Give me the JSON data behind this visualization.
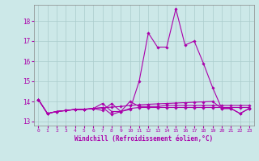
{
  "background_color": "#cce8e8",
  "grid_color": "#aacccc",
  "line_color": "#aa00aa",
  "xlim": [
    -0.5,
    23.5
  ],
  "ylim": [
    12.8,
    18.8
  ],
  "yticks": [
    13,
    14,
    15,
    16,
    17,
    18
  ],
  "xticks": [
    0,
    1,
    2,
    3,
    4,
    5,
    6,
    7,
    8,
    9,
    10,
    11,
    12,
    13,
    14,
    15,
    16,
    17,
    18,
    19,
    20,
    21,
    22,
    23
  ],
  "xlabel": "Windchill (Refroidissement éolien,°C)",
  "series_main": [
    14.1,
    13.4,
    13.5,
    13.55,
    13.6,
    13.6,
    13.65,
    13.55,
    13.9,
    13.5,
    13.6,
    15.0,
    17.4,
    16.7,
    16.7,
    18.6,
    16.8,
    17.0,
    15.9,
    14.7,
    13.65,
    13.65,
    13.4,
    13.65
  ],
  "series_flat": [
    14.1,
    13.4,
    13.5,
    13.55,
    13.6,
    13.62,
    13.65,
    13.68,
    13.72,
    13.75,
    13.8,
    13.83,
    13.86,
    13.88,
    13.9,
    13.92,
    13.94,
    13.96,
    13.98,
    14.0,
    13.65,
    13.65,
    13.4,
    13.65
  ],
  "series_mid1": [
    14.1,
    13.4,
    13.5,
    13.55,
    13.6,
    13.6,
    13.65,
    13.9,
    13.5,
    13.5,
    14.0,
    13.75,
    13.75,
    13.75,
    13.8,
    13.8,
    13.8,
    13.8,
    13.8,
    13.8,
    13.8,
    13.8,
    13.8,
    13.8
  ],
  "series_mid2": [
    14.1,
    13.4,
    13.5,
    13.55,
    13.6,
    13.6,
    13.65,
    13.7,
    13.35,
    13.5,
    13.65,
    13.7,
    13.7,
    13.7,
    13.7,
    13.7,
    13.7,
    13.7,
    13.7,
    13.7,
    13.7,
    13.7,
    13.7,
    13.7
  ]
}
